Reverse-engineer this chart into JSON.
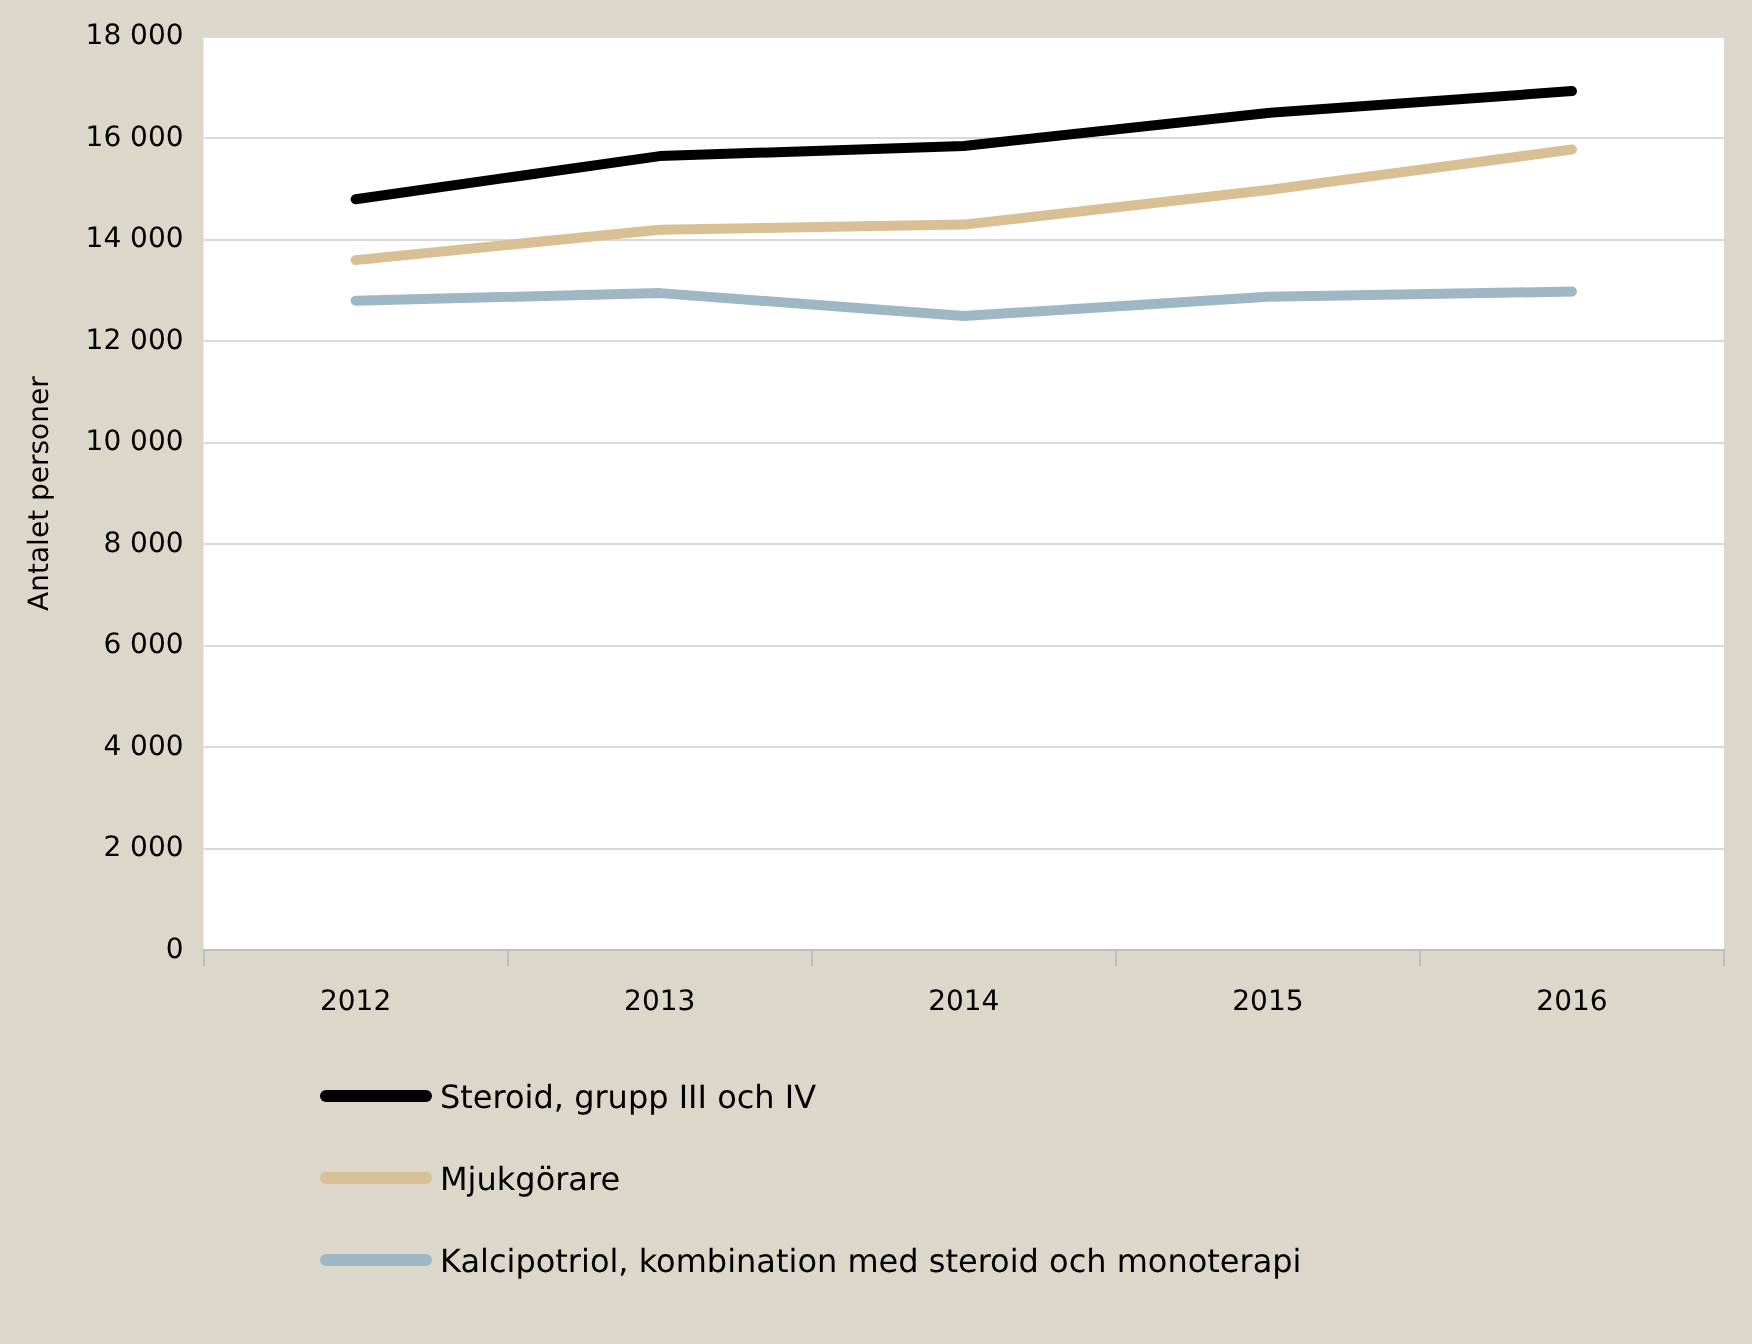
{
  "chart_data": {
    "type": "line",
    "ylabel": "Antalet personer",
    "categories": [
      "2012",
      "2013",
      "2014",
      "2015",
      "2016"
    ],
    "series": [
      {
        "name": "Steroid, grupp III och IV",
        "color": "#000000",
        "values": [
          14800,
          15650,
          15850,
          16500,
          16930
        ]
      },
      {
        "name": "Mjukgörare",
        "color": "#d9bf94",
        "values": [
          13600,
          14200,
          14300,
          14980,
          15780
        ]
      },
      {
        "name": "Kalcipotriol, kombination med steroid och monoterapi",
        "color": "#9db7c4",
        "values": [
          12800,
          12950,
          12500,
          12880,
          12980
        ]
      }
    ],
    "ylim": [
      0,
      18000
    ],
    "yticks": [
      {
        "value": 0,
        "label": "0"
      },
      {
        "value": 2000,
        "label": "2 000"
      },
      {
        "value": 4000,
        "label": "4 000"
      },
      {
        "value": 6000,
        "label": "6 000"
      },
      {
        "value": 8000,
        "label": "8 000"
      },
      {
        "value": 10000,
        "label": "10 000"
      },
      {
        "value": 12000,
        "label": "12 000"
      },
      {
        "value": 14000,
        "label": "14 000"
      },
      {
        "value": 16000,
        "label": "16 000"
      },
      {
        "value": 18000,
        "label": "18 000"
      }
    ],
    "grid": "y",
    "legend": "bottom",
    "marker": "none",
    "line_style": "solid"
  }
}
